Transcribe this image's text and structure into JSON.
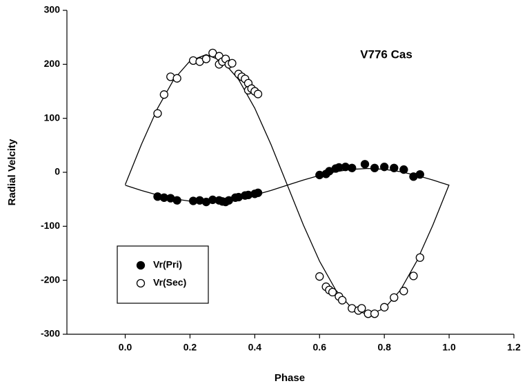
{
  "chart_data": {
    "type": "scatter",
    "annotation": "V776 Cas",
    "xlabel": "Phase",
    "ylabel": "Radial Velcity",
    "xlim": [
      -0.18,
      1.2
    ],
    "ylim": [
      -300,
      300
    ],
    "xticks": [
      {
        "value": 0,
        "label": "0.0"
      },
      0.2,
      0.4,
      0.6,
      0.8,
      {
        "value": 1,
        "label": "1.0"
      },
      1.2
    ],
    "yticks": [
      -300,
      -200,
      -100,
      0,
      100,
      200,
      300
    ],
    "legend": "lower left",
    "series": [
      {
        "name": "Vr(Pri)",
        "marker": "filled",
        "color": "#000000",
        "x": [
          0.1,
          0.12,
          0.14,
          0.16,
          0.21,
          0.23,
          0.25,
          0.27,
          0.29,
          0.3,
          0.31,
          0.32,
          0.34,
          0.35,
          0.37,
          0.38,
          0.4,
          0.41,
          0.6,
          0.62,
          0.63,
          0.65,
          0.66,
          0.68,
          0.7,
          0.74,
          0.77,
          0.8,
          0.83,
          0.86,
          0.89,
          0.91
        ],
        "values": [
          -45,
          -47,
          -48,
          -52,
          -53,
          -52,
          -55,
          -51,
          -52,
          -54,
          -55,
          -52,
          -47,
          -46,
          -43,
          -42,
          -40,
          -38,
          -5,
          -3,
          2,
          7,
          9,
          10,
          8,
          15,
          8,
          10,
          8,
          5,
          -8,
          -4
        ]
      },
      {
        "name": "Vr(Sec)",
        "marker": "open",
        "color": "#000000",
        "x": [
          0.1,
          0.12,
          0.14,
          0.16,
          0.21,
          0.23,
          0.25,
          0.27,
          0.29,
          0.29,
          0.3,
          0.31,
          0.32,
          0.33,
          0.35,
          0.36,
          0.37,
          0.38,
          0.38,
          0.39,
          0.4,
          0.41,
          0.6,
          0.62,
          0.63,
          0.64,
          0.66,
          0.67,
          0.7,
          0.72,
          0.73,
          0.75,
          0.77,
          0.8,
          0.83,
          0.86,
          0.89,
          0.91
        ],
        "values": [
          109,
          144,
          177,
          174,
          207,
          205,
          210,
          221,
          215,
          200,
          205,
          210,
          200,
          202,
          182,
          177,
          173,
          165,
          152,
          155,
          150,
          145,
          -193,
          -212,
          -218,
          -222,
          -230,
          -237,
          -252,
          -256,
          -252,
          -262,
          -262,
          -250,
          -232,
          -220,
          -192,
          -158
        ]
      }
    ],
    "lines": [
      {
        "color": "#000000",
        "x": [
          0,
          0.05,
          0.1,
          0.15,
          0.2,
          0.25,
          0.3,
          0.35,
          0.4,
          0.45,
          0.5,
          0.55,
          0.6,
          0.65,
          0.7,
          0.75,
          0.8,
          0.85,
          0.9,
          0.95,
          1
        ],
        "values": [
          -24,
          -33.6,
          -42.2,
          -49.1,
          -53.5,
          -55,
          -53.5,
          -49.1,
          -42.2,
          -33.6,
          -24,
          -14.4,
          -5.8,
          1.1,
          5.5,
          7,
          5.5,
          1.1,
          -5.8,
          -14.4,
          -24
        ]
      },
      {
        "color": "#000000",
        "x": [
          0,
          0.05,
          0.1,
          0.15,
          0.2,
          0.25,
          0.3,
          0.35,
          0.4,
          0.45,
          0.5,
          0.55,
          0.6,
          0.65,
          0.7,
          0.75,
          0.8,
          0.85,
          0.9,
          0.95,
          1
        ],
        "values": [
          -23,
          51.5,
          118.7,
          172,
          206.2,
          218,
          206.2,
          172,
          118.7,
          51.5,
          -23,
          -97.5,
          -164.7,
          -218,
          -252.2,
          -264,
          -252.2,
          -218,
          -164.7,
          -97.5,
          -23
        ]
      }
    ]
  }
}
